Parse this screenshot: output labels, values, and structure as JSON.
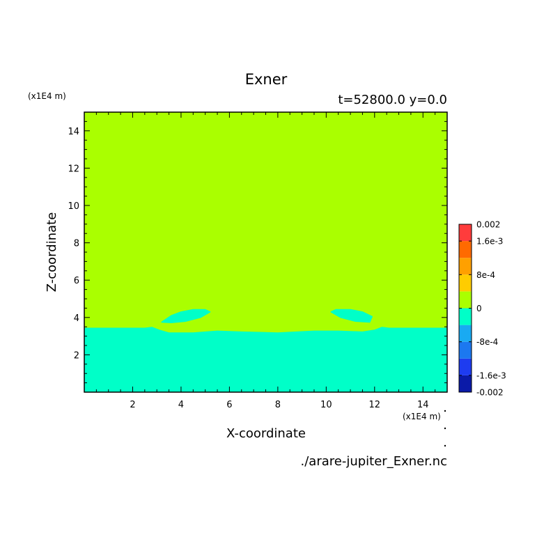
{
  "chart_data": {
    "type": "heatmap",
    "title": "Exner",
    "subtitle": "t=52800.0 y=0.0",
    "xlabel": "X-coordinate",
    "ylabel": "Z-coordinate",
    "x_unit": "(x1E4 m)",
    "y_unit": "(x1E4 m)",
    "source_label": "./arare-jupiter_Exner.nc",
    "xlim": [
      0,
      15
    ],
    "ylim": [
      0,
      15
    ],
    "x_ticks": [
      2,
      4,
      6,
      8,
      10,
      12,
      14
    ],
    "y_ticks": [
      2,
      4,
      6,
      8,
      10,
      12,
      14
    ],
    "colorbar": {
      "levels": [
        -0.002,
        -0.0016,
        -0.0012,
        -0.0008,
        -0.0004,
        0,
        0.0004,
        0.0008,
        0.0012,
        0.0016,
        0.002
      ],
      "colors": [
        "#0a1aa8",
        "#1e3cf0",
        "#1c78f0",
        "#19aaf2",
        "#00ffc8",
        "#aaff00",
        "#ffcc00",
        "#ffa000",
        "#ff6a00",
        "#ff3c3c"
      ],
      "tick_labels": [
        {
          "value": 0.002,
          "text": "0.002"
        },
        {
          "value": 0.0016,
          "text": "1.6e-3"
        },
        {
          "value": 0.0008,
          "text": "8e-4"
        },
        {
          "value": 0,
          "text": "0"
        },
        {
          "value": -0.0008,
          "text": "-8e-4"
        },
        {
          "value": -0.0016,
          "text": "-1.6e-3"
        },
        {
          "value": -0.002,
          "text": "-0.002"
        }
      ]
    },
    "regions": [
      {
        "name": "upper-positive",
        "range": [
          0,
          0.0004
        ],
        "color": "#aaff00"
      },
      {
        "name": "lower-negative",
        "range": [
          -0.0004,
          0
        ],
        "color": "#00ffc8"
      }
    ],
    "lower_boundary": [
      [
        0,
        3.45
      ],
      [
        2.5,
        3.45
      ],
      [
        2.8,
        3.5
      ],
      [
        3.1,
        3.35
      ],
      [
        3.5,
        3.2
      ],
      [
        4.5,
        3.2
      ],
      [
        5.5,
        3.3
      ],
      [
        6.5,
        3.25
      ],
      [
        8,
        3.2
      ],
      [
        9.5,
        3.3
      ],
      [
        10.5,
        3.3
      ],
      [
        11.5,
        3.25
      ],
      [
        12,
        3.35
      ],
      [
        12.3,
        3.5
      ],
      [
        12.6,
        3.45
      ],
      [
        15,
        3.45
      ]
    ],
    "blobs": [
      [
        [
          3.2,
          3.75
        ],
        [
          3.6,
          4.1
        ],
        [
          4.0,
          4.3
        ],
        [
          4.5,
          4.42
        ],
        [
          5.0,
          4.42
        ],
        [
          5.2,
          4.3
        ],
        [
          4.8,
          4.0
        ],
        [
          4.2,
          3.8
        ],
        [
          3.6,
          3.72
        ]
      ],
      [
        [
          10.2,
          4.3
        ],
        [
          10.4,
          4.42
        ],
        [
          11.0,
          4.42
        ],
        [
          11.5,
          4.3
        ],
        [
          11.9,
          4.05
        ],
        [
          11.8,
          3.75
        ],
        [
          11.2,
          3.8
        ],
        [
          10.6,
          4.0
        ]
      ]
    ]
  }
}
